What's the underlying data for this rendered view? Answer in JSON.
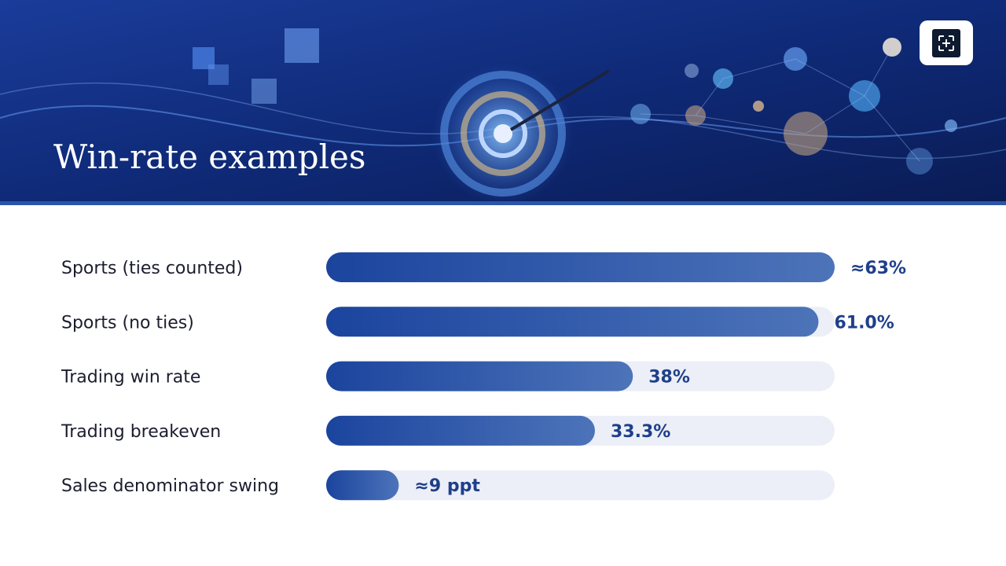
{
  "chart_data": {
    "type": "bar",
    "orientation": "horizontal",
    "title": "Win-rate examples",
    "categories": [
      "Sports (ties counted)",
      "Sports (no ties)",
      "Trading win rate",
      "Trading breakeven",
      "Sales denominator swing"
    ],
    "values": [
      63,
      61.0,
      38,
      33.3,
      9
    ],
    "value_labels": [
      "≈63%",
      "61.0%",
      "38%",
      "33.3%",
      "≈9 ppt"
    ],
    "color": "#1e47a0",
    "xlim": [
      0,
      63
    ]
  }
}
